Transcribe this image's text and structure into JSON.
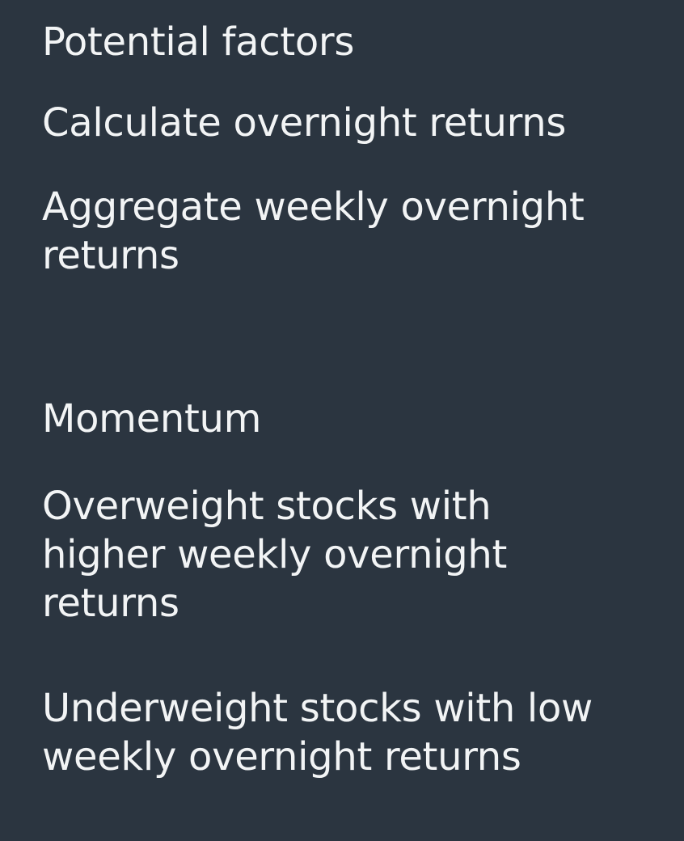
{
  "slide": {
    "lines": [
      "Potential factors",
      "Calculate overnight returns",
      "Aggregate weekly overnight\nreturns",
      "Momentum",
      "Overweight stocks with\nhigher weekly overnight\nreturns",
      "Underweight stocks with low\nweekly overnight returns"
    ],
    "colors": {
      "background": "#2b3540",
      "text": "#f2f4f5"
    }
  }
}
